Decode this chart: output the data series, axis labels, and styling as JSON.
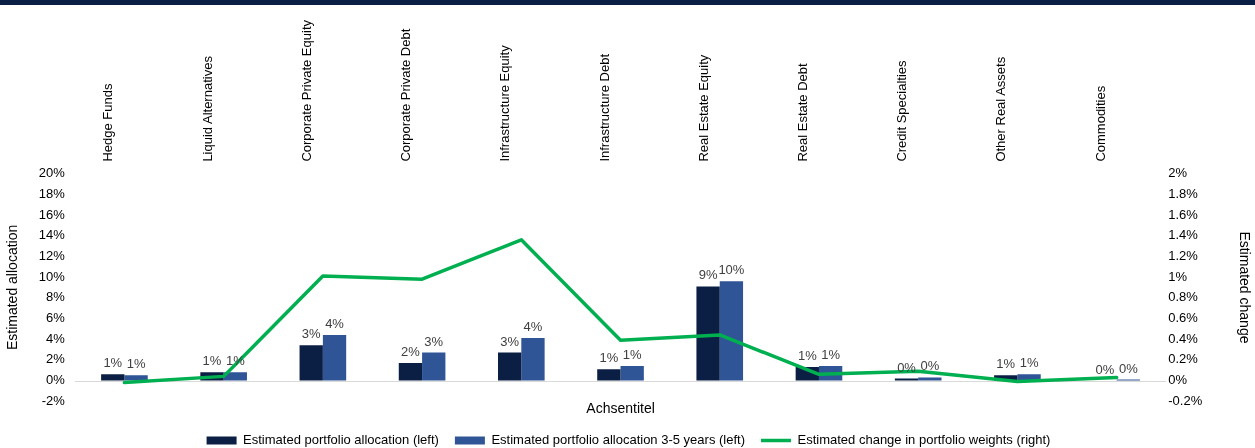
{
  "chart_data": {
    "type": "bar",
    "categories": [
      "Hedge Funds",
      "Liquid Alternatives",
      "Corporate Private Equity",
      "Corporate Private Debt",
      "Infrastructure Equity",
      "Infrastructure Debt",
      "Real Estate Equity",
      "Real Estate Debt",
      "Credit Specialties",
      "Other Real Assets",
      "Commodities"
    ],
    "xlabel": "Achsentitel",
    "ylabel": "Estimated allocation",
    "y2label": "Estimated change",
    "series": [
      {
        "name": "Estimated portfolio allocation (left)",
        "color": "#0b1f44",
        "values": [
          0.6,
          0.8,
          3.4,
          1.7,
          2.7,
          1.1,
          9.1,
          1.3,
          0.2,
          0.5,
          0
        ],
        "value_labels": [
          "1%",
          "1%",
          "3%",
          "2%",
          "3%",
          "1%",
          "9%",
          "1%",
          "0%",
          "1%",
          "0%"
        ]
      },
      {
        "name": "Estimated portfolio allocation 3-5 years (left)",
        "color": "#2f5597",
        "values": [
          0.5,
          0.8,
          4.4,
          2.7,
          4.1,
          1.4,
          9.6,
          1.4,
          0.3,
          0.6,
          0.1
        ],
        "value_labels": [
          "1%",
          "1%",
          "4%",
          "3%",
          "4%",
          "1%",
          "10%",
          "1%",
          "0%",
          "1%",
          "0%"
        ]
      },
      {
        "name": "Estimated change in portfolio weights (right)",
        "type": "line",
        "axis": "y2",
        "color": "#00b050",
        "values": [
          -0.02,
          0.04,
          1.01,
          0.98,
          1.36,
          0.39,
          0.44,
          0.06,
          0.09,
          -0.01,
          0.03
        ]
      }
    ],
    "ylim": [
      -2,
      20
    ],
    "yticks": [
      {
        "value": -2,
        "label": "-2%"
      },
      {
        "value": 0,
        "label": "0%"
      },
      {
        "value": 2,
        "label": "2%"
      },
      {
        "value": 4,
        "label": "4%"
      },
      {
        "value": 6,
        "label": "6%"
      },
      {
        "value": 8,
        "label": "8%"
      },
      {
        "value": 10,
        "label": "10%"
      },
      {
        "value": 12,
        "label": "12%"
      },
      {
        "value": 14,
        "label": "14%"
      },
      {
        "value": 16,
        "label": "16%"
      },
      {
        "value": 18,
        "label": "18%"
      },
      {
        "value": 20,
        "label": "20%"
      }
    ],
    "y2lim": [
      -0.2,
      2
    ],
    "y2ticks": [
      {
        "value": -0.2,
        "label": "-0.2%"
      },
      {
        "value": 0,
        "label": "0%"
      },
      {
        "value": 0.2,
        "label": "0.2%"
      },
      {
        "value": 0.4,
        "label": "0.4%"
      },
      {
        "value": 0.6,
        "label": "0.6%"
      },
      {
        "value": 0.8,
        "label": "0.8%"
      },
      {
        "value": 1,
        "label": "1%"
      },
      {
        "value": 1.2,
        "label": "1.2%"
      },
      {
        "value": 1.4,
        "label": "1.4%"
      },
      {
        "value": 1.6,
        "label": "1.6%"
      },
      {
        "value": 1.8,
        "label": "1.8%"
      },
      {
        "value": 2,
        "label": "2%"
      }
    ],
    "ref_lines": [
      {
        "axis": "y",
        "value": 0,
        "color": "#d9d9d9"
      }
    ],
    "grid": false,
    "legend": "bottom",
    "marker": "none"
  }
}
